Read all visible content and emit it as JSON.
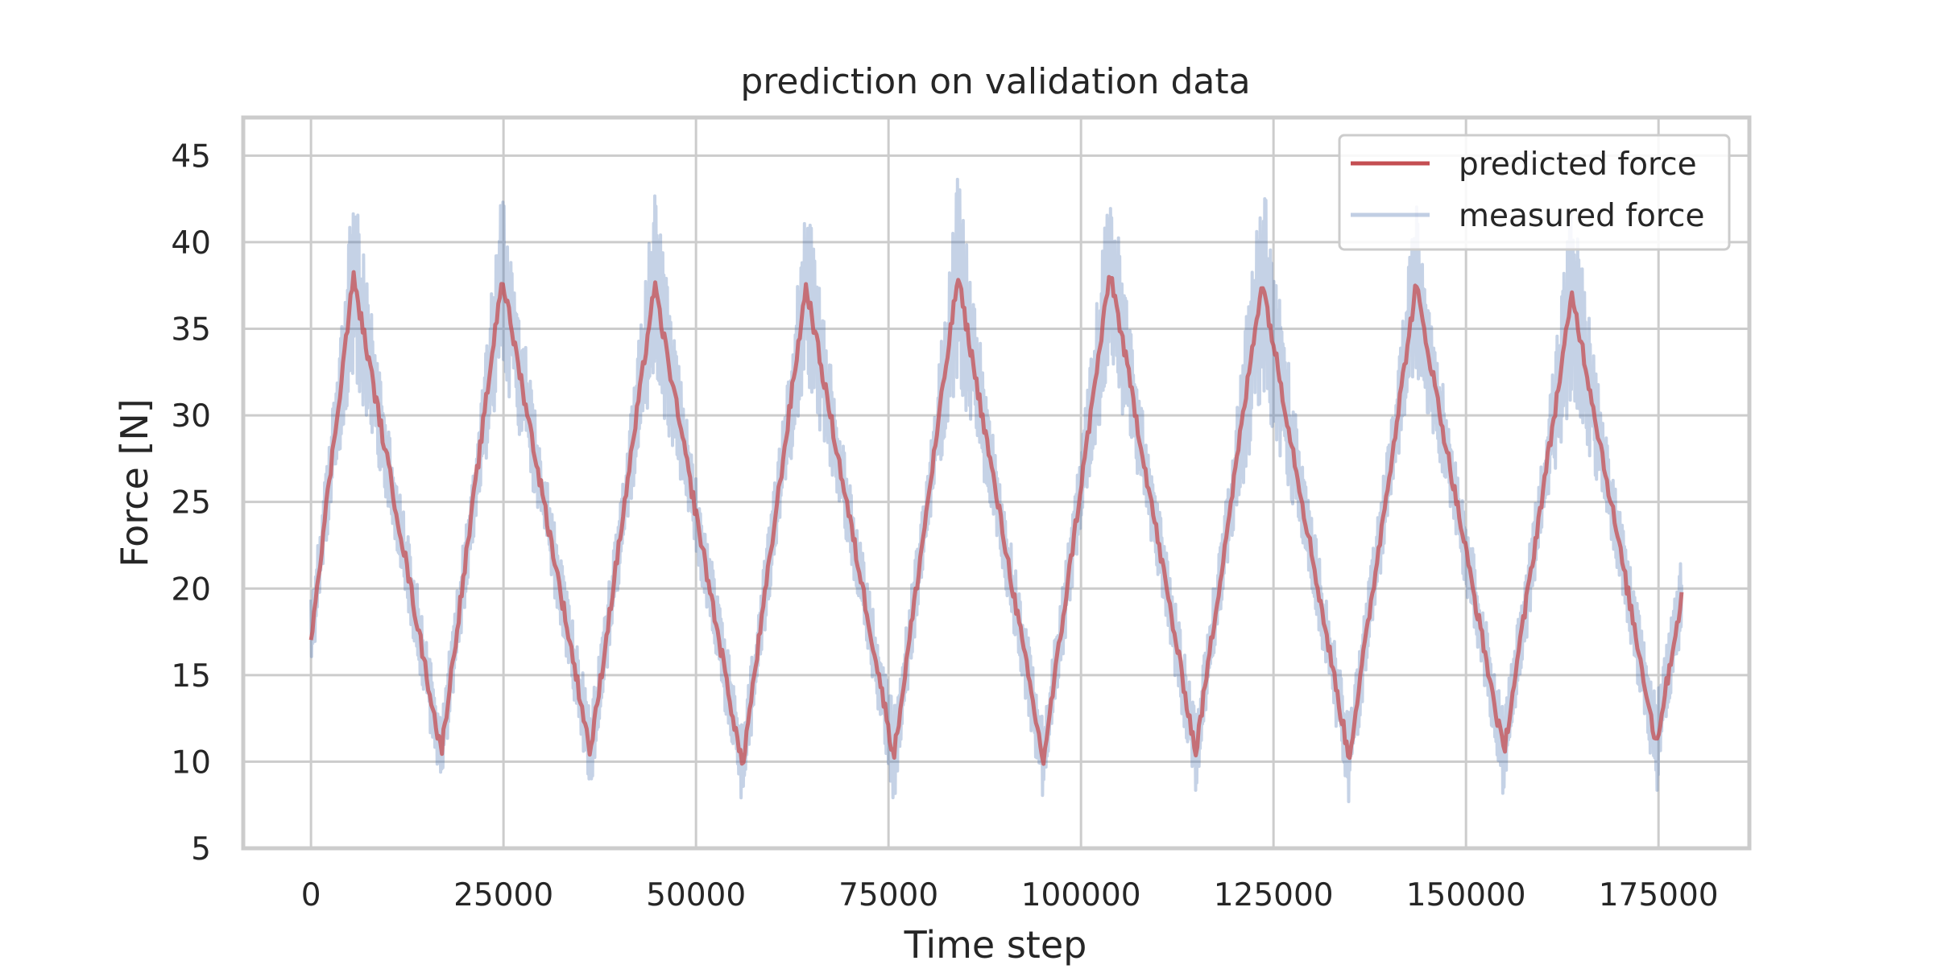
{
  "chart_data": {
    "type": "line",
    "title": "prediction on validation data",
    "xlabel": "Time step",
    "ylabel": "Force [N]",
    "xlim": [
      -8800,
      186800
    ],
    "ylim": [
      5,
      47.2
    ],
    "xticks": [
      0,
      25000,
      50000,
      75000,
      100000,
      125000,
      150000,
      175000
    ],
    "yticks": [
      5,
      10,
      15,
      20,
      25,
      30,
      35,
      40,
      45
    ],
    "grid": true,
    "legend": {
      "placement": "top-right",
      "entries": [
        "predicted force",
        "measured force"
      ]
    },
    "colors": {
      "predicted": "#c44e52",
      "measured": "#4c72b0",
      "grid": "#cccccc",
      "frame": "#cccccc",
      "text": "#262626"
    },
    "peaks": [
      {
        "x": 5500,
        "y": 38.0
      },
      {
        "x": 24800,
        "y": 38.0
      },
      {
        "x": 44600,
        "y": 37.5
      },
      {
        "x": 64300,
        "y": 37.5
      },
      {
        "x": 84000,
        "y": 38.0
      },
      {
        "x": 103800,
        "y": 38.3
      },
      {
        "x": 123500,
        "y": 37.8
      },
      {
        "x": 143500,
        "y": 37.5
      },
      {
        "x": 163800,
        "y": 37.0
      }
    ],
    "troughs": [
      {
        "x": 16900,
        "y": 10.5
      },
      {
        "x": 36300,
        "y": 10.5
      },
      {
        "x": 56000,
        "y": 9.7
      },
      {
        "x": 75700,
        "y": 10.3
      },
      {
        "x": 95100,
        "y": 10.0
      },
      {
        "x": 114900,
        "y": 10.5
      },
      {
        "x": 134800,
        "y": 10.2
      },
      {
        "x": 154900,
        "y": 10.5
      },
      {
        "x": 174700,
        "y": 11.0
      }
    ],
    "series": [
      {
        "name": "predicted force",
        "x": [
          0,
          5500,
          16900,
          24800,
          36300,
          44600,
          56000,
          64300,
          75700,
          84000,
          95100,
          103800,
          114900,
          123500,
          134800,
          143500,
          154900,
          163800,
          174700,
          178000
        ],
        "values": [
          17.2,
          38.0,
          10.5,
          38.0,
          10.5,
          37.5,
          9.7,
          37.5,
          10.3,
          38.0,
          10.0,
          38.3,
          10.5,
          37.8,
          10.2,
          37.5,
          10.5,
          37.0,
          11.0,
          19.5
        ]
      },
      {
        "name": "measured force",
        "x": [
          0,
          5500,
          16900,
          24800,
          36300,
          44600,
          56000,
          64300,
          75700,
          84000,
          95100,
          103800,
          114900,
          123500,
          134800,
          143500,
          154900,
          163800,
          174700,
          178000
        ],
        "values": [
          17.0,
          44.0,
          8.0,
          44.0,
          8.0,
          43.5,
          7.0,
          43.5,
          7.0,
          44.5,
          7.5,
          44.5,
          7.5,
          45.3,
          7.0,
          43.0,
          7.5,
          43.5,
          7.5,
          22.5
        ]
      }
    ]
  }
}
